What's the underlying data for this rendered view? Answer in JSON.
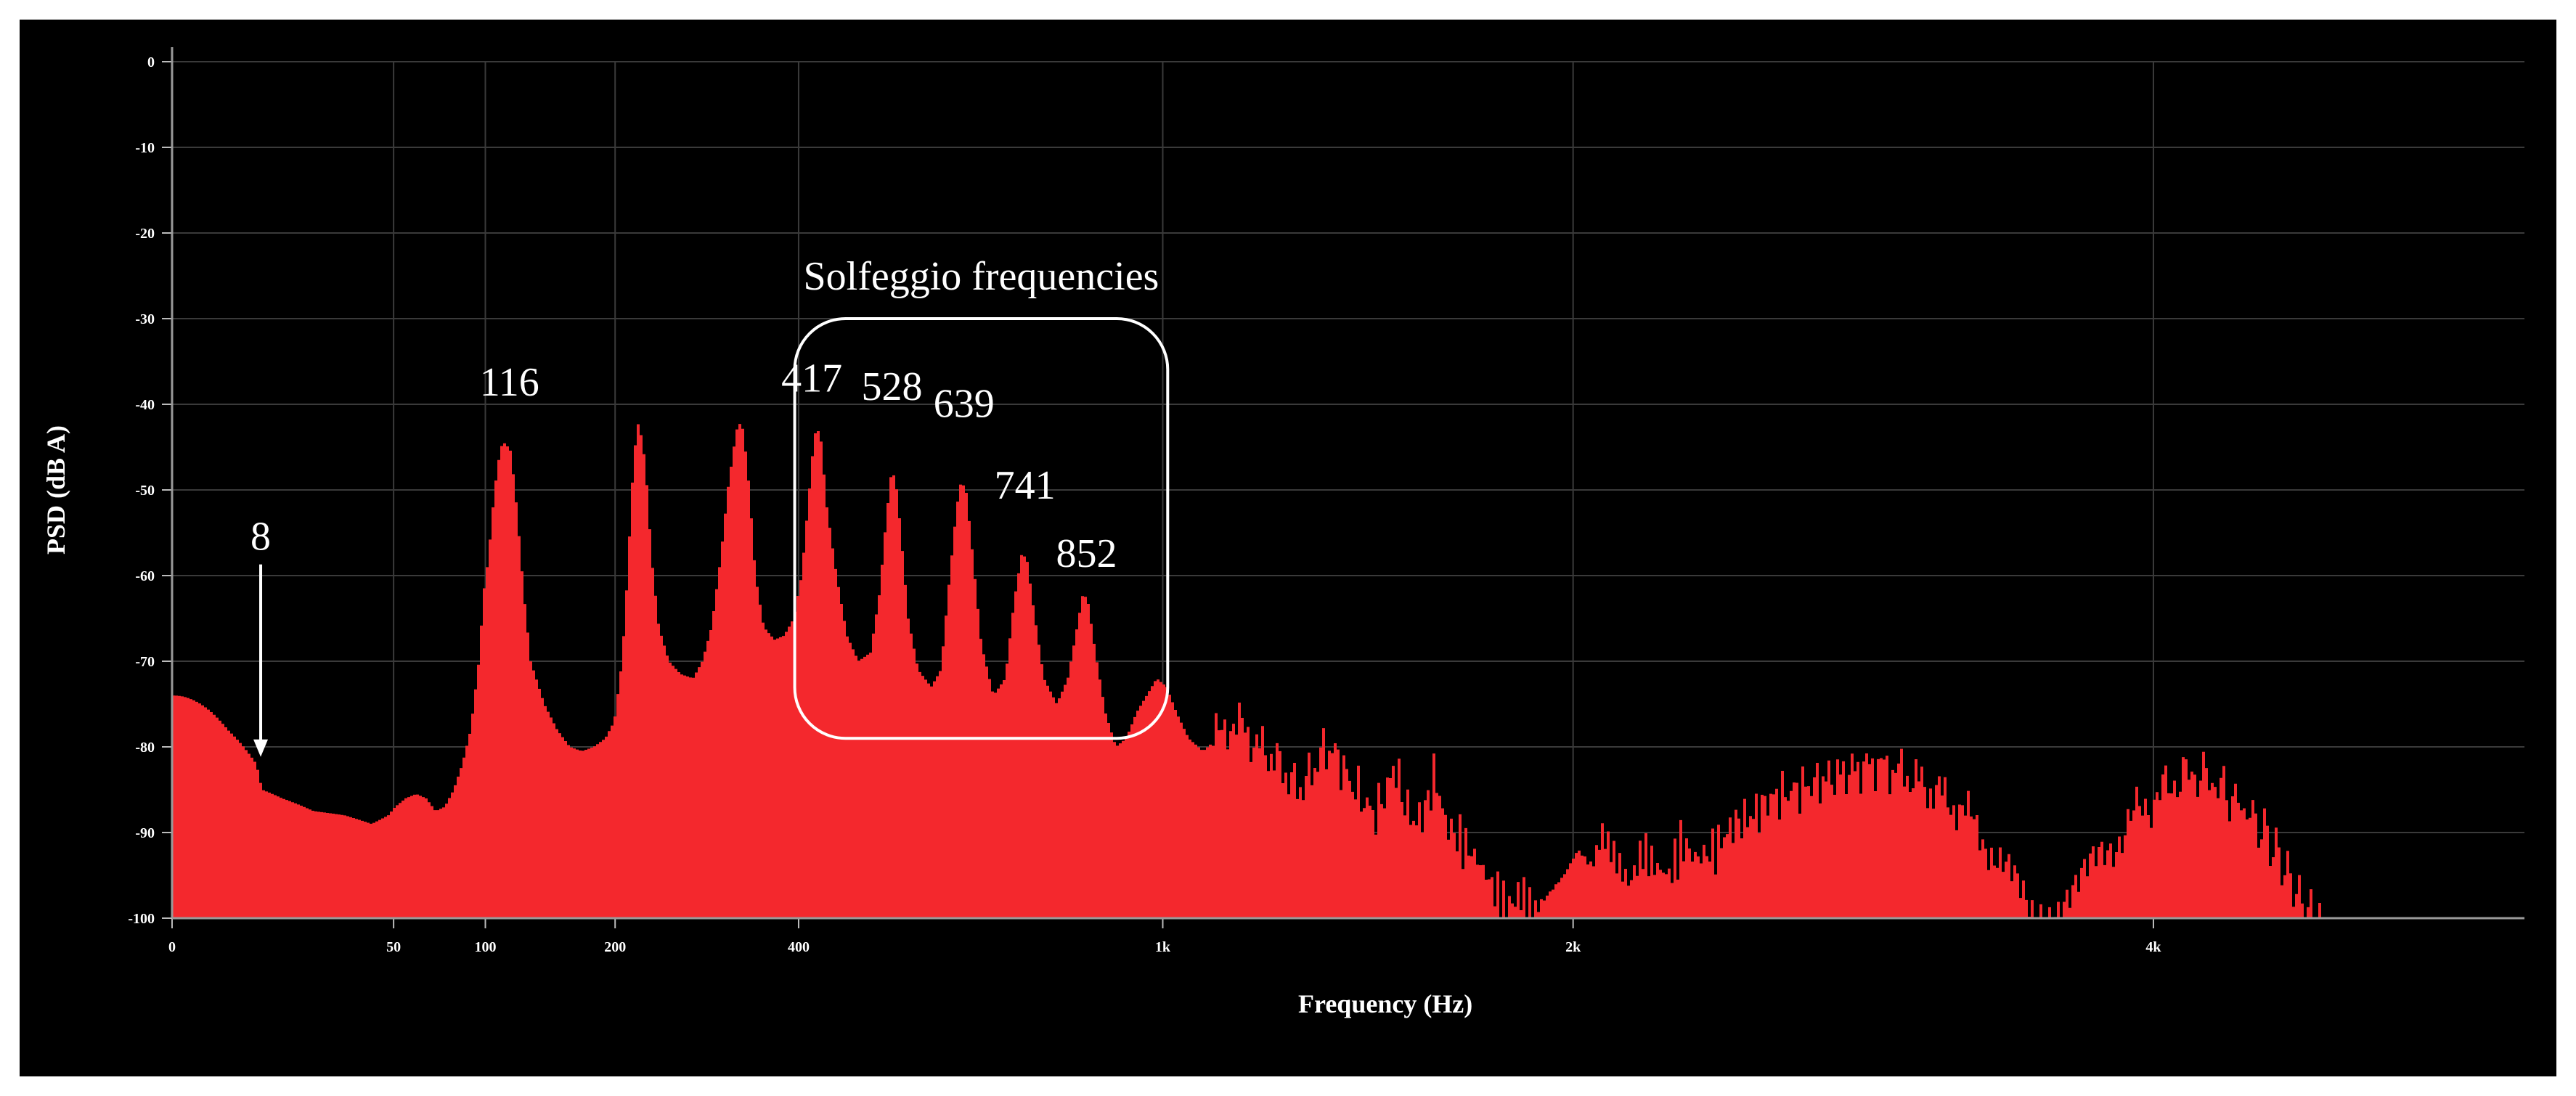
{
  "chart_data": {
    "type": "area",
    "title": "",
    "xlabel": "Frequency (Hz)",
    "ylabel": "PSD (dB A)",
    "grid": true,
    "x_scale": "sqrt",
    "xlim": [
      0,
      5500
    ],
    "ylim": [
      -100,
      0
    ],
    "y_ticks": [
      0,
      -10,
      -20,
      -30,
      -40,
      -50,
      -60,
      -70,
      -80,
      -90,
      -100
    ],
    "x_ticks": [
      {
        "value": 0,
        "label": "0"
      },
      {
        "value": 50,
        "label": "50"
      },
      {
        "value": 100,
        "label": "100"
      },
      {
        "value": 200,
        "label": "200"
      },
      {
        "value": 400,
        "label": "400"
      },
      {
        "value": 1000,
        "label": "1k"
      },
      {
        "value": 2000,
        "label": "2k"
      },
      {
        "value": 4000,
        "label": "4k"
      }
    ],
    "colors": {
      "background": "#000000",
      "fill": "#f4282d",
      "grid": "#3a3a3a",
      "text": "#ffffff"
    },
    "series": [
      {
        "points": [
          [
            0,
            -74
          ],
          [
            3,
            -78
          ],
          [
            7,
            -82
          ],
          [
            8,
            -85
          ],
          [
            12,
            -86
          ],
          [
            20,
            -87.5
          ],
          [
            30,
            -88
          ],
          [
            40,
            -89
          ],
          [
            47,
            -88
          ],
          [
            50,
            -87
          ],
          [
            55,
            -86
          ],
          [
            60,
            -85.5
          ],
          [
            65,
            -86
          ],
          [
            70,
            -87.5
          ],
          [
            75,
            -87
          ],
          [
            80,
            -85
          ],
          [
            85,
            -82
          ],
          [
            90,
            -78
          ],
          [
            95,
            -70
          ],
          [
            98,
            -62
          ],
          [
            101,
            -58
          ],
          [
            105,
            -50
          ],
          [
            109,
            -45
          ],
          [
            112,
            -44.5
          ],
          [
            116,
            -45.5
          ],
          [
            120,
            -52
          ],
          [
            125,
            -62
          ],
          [
            130,
            -70
          ],
          [
            140,
            -75
          ],
          [
            150,
            -78
          ],
          [
            160,
            -80
          ],
          [
            170,
            -80.5
          ],
          [
            180,
            -80
          ],
          [
            190,
            -79
          ],
          [
            198,
            -77
          ],
          [
            205,
            -70
          ],
          [
            210,
            -60
          ],
          [
            214,
            -50
          ],
          [
            219,
            -42
          ],
          [
            222,
            -43
          ],
          [
            227,
            -47
          ],
          [
            233,
            -58
          ],
          [
            240,
            -66
          ],
          [
            250,
            -70
          ],
          [
            262,
            -71.5
          ],
          [
            275,
            -72
          ],
          [
            285,
            -70
          ],
          [
            295,
            -66
          ],
          [
            305,
            -58
          ],
          [
            313,
            -50
          ],
          [
            320,
            -45
          ],
          [
            325,
            -42
          ],
          [
            331,
            -43
          ],
          [
            338,
            -50
          ],
          [
            345,
            -60
          ],
          [
            355,
            -66
          ],
          [
            368,
            -67.5
          ],
          [
            380,
            -67
          ],
          [
            392,
            -65
          ],
          [
            402,
            -60
          ],
          [
            410,
            -52
          ],
          [
            416,
            -46
          ],
          [
            421,
            -42.5
          ],
          [
            427,
            -44
          ],
          [
            435,
            -52
          ],
          [
            448,
            -60
          ],
          [
            462,
            -67
          ],
          [
            478,
            -70
          ],
          [
            495,
            -69
          ],
          [
            508,
            -62
          ],
          [
            518,
            -53
          ],
          [
            525,
            -48
          ],
          [
            531,
            -48.5
          ],
          [
            538,
            -54
          ],
          [
            550,
            -65
          ],
          [
            565,
            -71
          ],
          [
            585,
            -73
          ],
          [
            600,
            -71
          ],
          [
            614,
            -60
          ],
          [
            625,
            -52
          ],
          [
            632,
            -49
          ],
          [
            640,
            -50
          ],
          [
            650,
            -57
          ],
          [
            665,
            -68
          ],
          [
            685,
            -74
          ],
          [
            705,
            -72
          ],
          [
            720,
            -63
          ],
          [
            733,
            -57.5
          ],
          [
            742,
            -58
          ],
          [
            754,
            -64
          ],
          [
            772,
            -72
          ],
          [
            795,
            -75
          ],
          [
            815,
            -72
          ],
          [
            832,
            -66
          ],
          [
            843,
            -62
          ],
          [
            852,
            -63
          ],
          [
            866,
            -69
          ],
          [
            885,
            -76
          ],
          [
            905,
            -80
          ],
          [
            925,
            -79
          ],
          [
            945,
            -76
          ],
          [
            965,
            -74
          ],
          [
            985,
            -72
          ],
          [
            1005,
            -73
          ],
          [
            1025,
            -76
          ],
          [
            1050,
            -79
          ],
          [
            1080,
            -80.5
          ],
          [
            1110,
            -79
          ],
          [
            1140,
            -77
          ],
          [
            1170,
            -78
          ],
          [
            1200,
            -80
          ],
          [
            1230,
            -81
          ],
          [
            1260,
            -83
          ],
          [
            1290,
            -85
          ],
          [
            1320,
            -83
          ],
          [
            1350,
            -80
          ],
          [
            1380,
            -81
          ],
          [
            1410,
            -84
          ],
          [
            1440,
            -86
          ],
          [
            1470,
            -88
          ],
          [
            1500,
            -85
          ],
          [
            1520,
            -82
          ],
          [
            1540,
            -86
          ],
          [
            1570,
            -89
          ],
          [
            1600,
            -87
          ],
          [
            1620,
            -83
          ],
          [
            1650,
            -89
          ],
          [
            1690,
            -91
          ],
          [
            1730,
            -93
          ],
          [
            1770,
            -96
          ],
          [
            1810,
            -99
          ],
          [
            1850,
            -97
          ],
          [
            1890,
            -99
          ],
          [
            1930,
            -97
          ],
          [
            1970,
            -95
          ],
          [
            2010,
            -92
          ],
          [
            2050,
            -94
          ],
          [
            2080,
            -90
          ],
          [
            2120,
            -93
          ],
          [
            2160,
            -96
          ],
          [
            2200,
            -92
          ],
          [
            2240,
            -94
          ],
          [
            2280,
            -95
          ],
          [
            2320,
            -91
          ],
          [
            2360,
            -93
          ],
          [
            2420,
            -92
          ],
          [
            2480,
            -89
          ],
          [
            2540,
            -88
          ],
          [
            2600,
            -86
          ],
          [
            2680,
            -85
          ],
          [
            2760,
            -84
          ],
          [
            2850,
            -83
          ],
          [
            2950,
            -82
          ],
          [
            3050,
            -83
          ],
          [
            3150,
            -85
          ],
          [
            3250,
            -87
          ],
          [
            3350,
            -91
          ],
          [
            3450,
            -96
          ],
          [
            3520,
            -100
          ],
          [
            3600,
            -100
          ],
          [
            3680,
            -97
          ],
          [
            3760,
            -94
          ],
          [
            3840,
            -91
          ],
          [
            3920,
            -88
          ],
          [
            4000,
            -86
          ],
          [
            4080,
            -84
          ],
          [
            4160,
            -83
          ],
          [
            4240,
            -84
          ],
          [
            4320,
            -86
          ],
          [
            4400,
            -88
          ],
          [
            4480,
            -91
          ],
          [
            4560,
            -95
          ],
          [
            4630,
            -99
          ],
          [
            4700,
            -100
          ]
        ]
      }
    ],
    "annotations": [
      {
        "text": "8",
        "x": 8,
        "y": -57,
        "arrow_to": -81
      },
      {
        "text": "116",
        "x": 116,
        "y": -39
      },
      {
        "text": "417",
        "x": 417,
        "y": -38.5
      },
      {
        "text": "528",
        "x": 528,
        "y": -39.5
      },
      {
        "text": "639",
        "x": 639,
        "y": -41.5
      },
      {
        "text": "741",
        "x": 741,
        "y": -51
      },
      {
        "text": "852",
        "x": 852,
        "y": -59
      }
    ],
    "highlight_box": {
      "label": "Solfeggio frequencies",
      "x_from": 395,
      "x_to": 1010,
      "y_from": -30,
      "y_to": -79
    }
  }
}
